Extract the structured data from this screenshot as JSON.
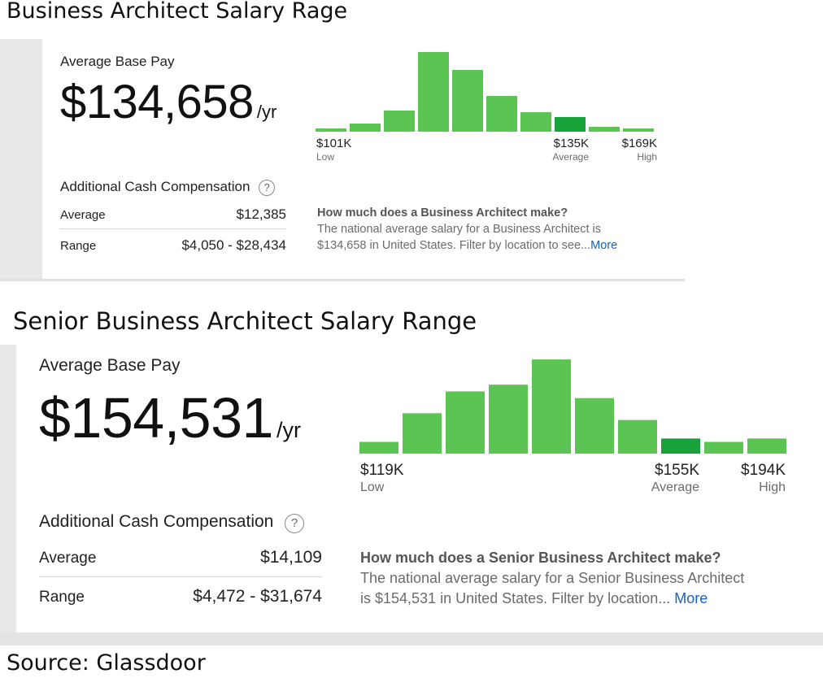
{
  "title_1": "Business Architect Salary Rage",
  "title_2": "Senior Business Architect Salary  Range",
  "source": "Source: Glassdoor",
  "card_1": {
    "avg_base_label": "Average Base Pay",
    "avg_base_value": "$134,658",
    "unit": "/yr",
    "additional_label": "Additional Cash Compensation",
    "help_glyph": "?",
    "average_label": "Average",
    "average_value": "$12,385",
    "range_label": "Range",
    "range_value": "$4,050 - $28,434",
    "low_value": "$101K",
    "low_label": "Low",
    "avg_value_short": "$135K",
    "avg_label": "Average",
    "high_value": "$169K",
    "high_label": "High",
    "question": "How much does a Business Architect make?",
    "desc_line1": "The national average salary for a Business Architect is",
    "desc_line2": "$134,658 in United States. Filter by location to see...",
    "more": "More"
  },
  "card_2": {
    "avg_base_label": "Average Base Pay",
    "avg_base_value": "$154,531",
    "unit": "/yr",
    "additional_label": "Additional Cash Compensation",
    "help_glyph": "?",
    "average_label": "Average",
    "average_value": "$14,109",
    "range_label": "Range",
    "range_value": "$4,472 - $31,674",
    "low_value": "$119K",
    "low_label": "Low",
    "avg_value_short": "$155K",
    "avg_label": "Average",
    "high_value": "$194K",
    "high_label": "High",
    "question": "How much does a Senior Business Architect make?",
    "desc_line1": "The national average salary for a Senior Business Architect",
    "desc_line2": "is $154,531 in United States. Filter by location...",
    "more": "More"
  },
  "colors": {
    "bar": "#5bc453",
    "bar_highlight": "#17a23a",
    "link": "#1861bf"
  },
  "chart_data": [
    {
      "type": "bar",
      "title": "",
      "xlabel": "",
      "ylabel": "",
      "values": [
        2,
        5,
        13,
        49,
        38,
        22,
        12,
        9,
        3,
        2
      ],
      "highlight_index": 7,
      "ylim": [
        0,
        50
      ],
      "tick_labels": [
        "$101K",
        "$135K",
        "$169K"
      ]
    },
    {
      "type": "bar",
      "title": "",
      "xlabel": "",
      "ylabel": "",
      "values": [
        7,
        24,
        37,
        41,
        56,
        33,
        20,
        9,
        7,
        9
      ],
      "highlight_index": 7,
      "ylim": [
        0,
        58
      ],
      "tick_labels": [
        "$119K",
        "$155K",
        "$194K"
      ]
    }
  ]
}
